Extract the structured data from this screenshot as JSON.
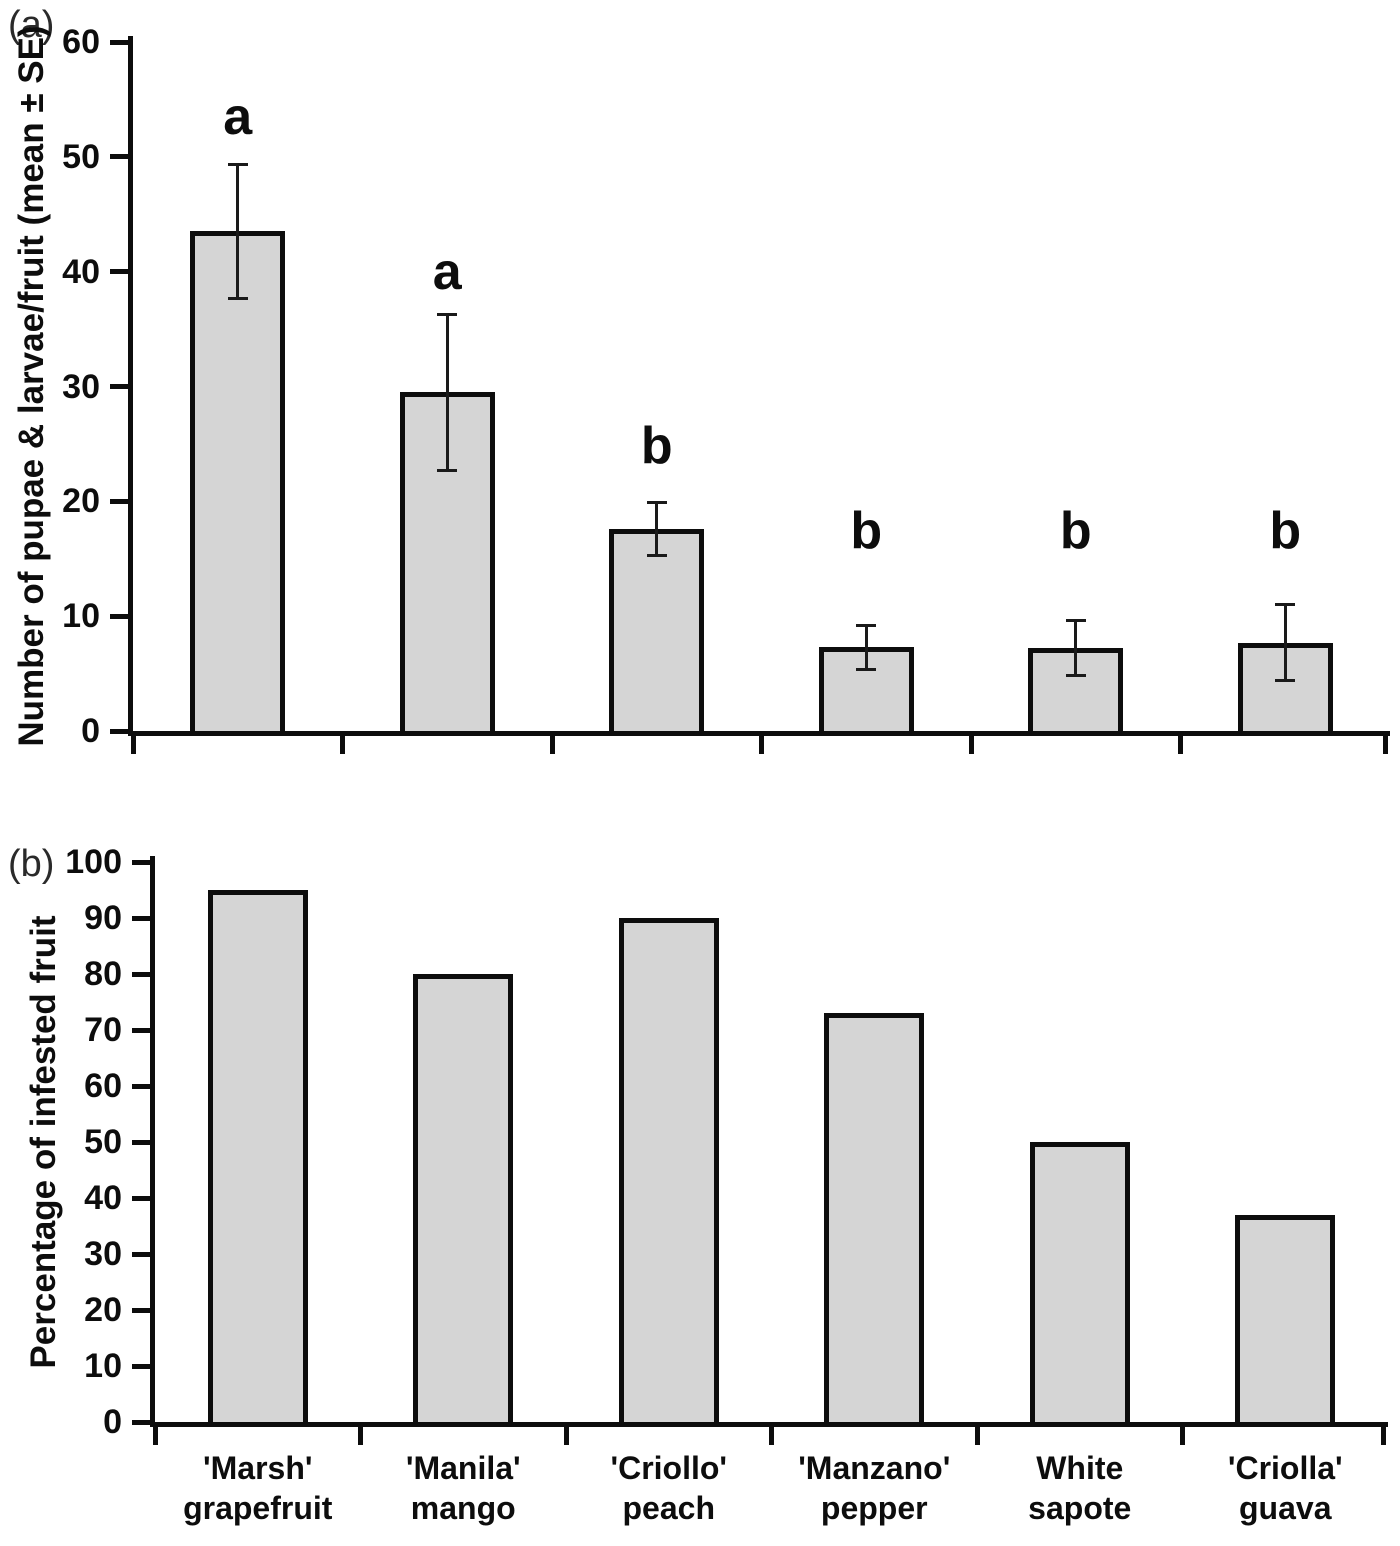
{
  "figure": {
    "panel_a_tag": "(a)",
    "panel_b_tag": "(b)",
    "background_color": "#ffffff",
    "bar_fill_color": "#d5d5d5",
    "line_color": "#0d0d0d"
  },
  "chart_data": [
    {
      "type": "bar",
      "panel": "a",
      "ylabel": "Number of pupae & larvae/fruit (mean ± SE)",
      "xlabel": "",
      "ylim": [
        0,
        60
      ],
      "ytick_step": 10,
      "ytick_labels": [
        "0",
        "10",
        "20",
        "30",
        "40",
        "50",
        "60"
      ],
      "grid": false,
      "legend": "none",
      "categories": [
        "'Marsh' grapefruit",
        "'Manila' mango",
        "'Criollo' peach",
        "'Manzano' pepper",
        "White sapote",
        "'Criolla' guava"
      ],
      "values": [
        43.5,
        29.5,
        17.6,
        7.3,
        7.2,
        7.7
      ],
      "error_low": [
        37.7,
        22.7,
        15.3,
        5.4,
        4.8,
        4.4
      ],
      "error_high": [
        49.3,
        36.3,
        19.9,
        9.2,
        9.6,
        11.0
      ],
      "sig_letters": [
        "a",
        "a",
        "b",
        "b",
        "b",
        "b"
      ],
      "sig_letter_y": [
        53.5,
        40,
        24.8,
        17.4,
        17.4,
        17.4
      ]
    },
    {
      "type": "bar",
      "panel": "b",
      "ylabel": "Percentage of infested fruit",
      "xlabel": "",
      "ylim": [
        0,
        100
      ],
      "ytick_step": 10,
      "ytick_labels": [
        "0",
        "10",
        "20",
        "30",
        "40",
        "50",
        "60",
        "70",
        "80",
        "90",
        "100"
      ],
      "grid": false,
      "legend": "none",
      "categories": [
        "'Marsh' grapefruit",
        "'Manila' mango",
        "'Criollo' peach",
        "'Manzano' pepper",
        "White sapote",
        "'Criolla' guava"
      ],
      "values": [
        95,
        80,
        90,
        73,
        50,
        37
      ]
    }
  ],
  "x_axis": {
    "categories_line1": [
      "'Marsh'",
      "'Manila'",
      "'Criollo'",
      "'Manzano'",
      "White",
      "'Criolla'"
    ],
    "categories_line2": [
      "grapefruit",
      "mango",
      "peach",
      "pepper",
      "sapote",
      "guava"
    ]
  }
}
